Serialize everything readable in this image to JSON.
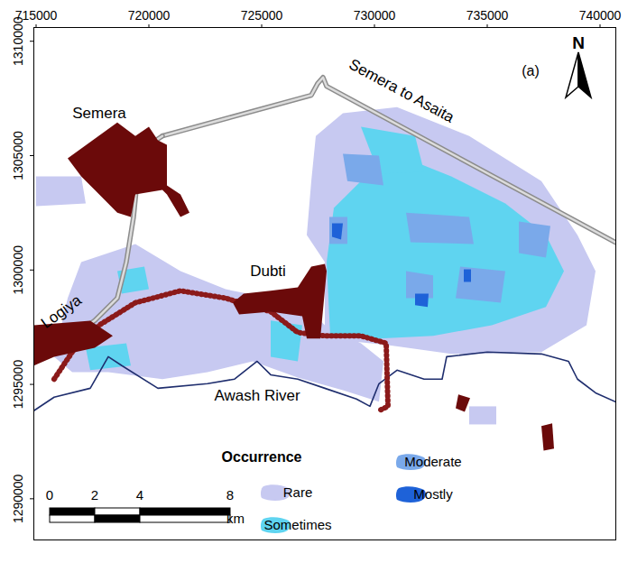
{
  "chart_data": {
    "type": "map",
    "xlim": [
      714900,
      740700
    ],
    "ylim": [
      1288200,
      1310600
    ],
    "xticks": [
      715000,
      720000,
      725000,
      730000,
      735000,
      740000
    ],
    "yticks": [
      1290000,
      1295000,
      1300000,
      1305000,
      1310000
    ],
    "panel_label": "(a)",
    "north_arrow": "N",
    "legend": "bottom",
    "legend_title": "Occurrence",
    "series": [
      {
        "name": "Rare",
        "color": "#c7c9f1",
        "polygons": [
          [
            [
              727400,
              1305860
            ],
            [
              728600,
              1306850
            ],
            [
              731000,
              1307120
            ],
            [
              734200,
              1305860
            ],
            [
              737400,
              1303890
            ],
            [
              739000,
              1301530
            ],
            [
              739800,
              1299950
            ],
            [
              739400,
              1297590
            ],
            [
              737400,
              1296410
            ],
            [
              733400,
              1296330
            ],
            [
              730600,
              1296720
            ],
            [
              727800,
              1297000
            ],
            [
              727800,
              1300350
            ],
            [
              727000,
              1301530
            ],
            [
              727200,
              1303890
            ]
          ],
          [
            [
              717000,
              1300350
            ],
            [
              719400,
              1301140
            ],
            [
              721400,
              1299950
            ],
            [
              723400,
              1299160
            ],
            [
              725400,
              1298770
            ],
            [
              727000,
              1298380
            ],
            [
              727800,
              1297590
            ],
            [
              729400,
              1296800
            ],
            [
              730400,
              1296010
            ],
            [
              730200,
              1294240
            ],
            [
              728600,
              1294750
            ],
            [
              726600,
              1295300
            ],
            [
              724600,
              1296010
            ],
            [
              722600,
              1295540
            ],
            [
              720600,
              1295230
            ],
            [
              718200,
              1295540
            ],
            [
              716600,
              1295540
            ],
            [
              715800,
              1296210
            ],
            [
              716400,
              1298770
            ]
          ],
          [
            [
              715000,
              1304090
            ],
            [
              717000,
              1304090
            ],
            [
              717200,
              1302910
            ],
            [
              715000,
              1302790
            ]
          ],
          [
            [
              734200,
              1294040
            ],
            [
              735400,
              1294040
            ],
            [
              735400,
              1293250
            ],
            [
              734200,
              1293250
            ]
          ]
        ]
      },
      {
        "name": "Sometimes",
        "color": "#5fd4f0",
        "polygons": [
          [
            [
              727880,
              1300350
            ],
            [
              728200,
              1302710
            ],
            [
              729400,
              1303890
            ],
            [
              731400,
              1304880
            ],
            [
              733400,
              1304090
            ],
            [
              735800,
              1302910
            ],
            [
              737600,
              1301530
            ],
            [
              738400,
              1299950
            ],
            [
              737600,
              1298380
            ],
            [
              735200,
              1297590
            ],
            [
              732600,
              1297120
            ],
            [
              730200,
              1297000
            ],
            [
              728040,
              1297120
            ]
          ],
          [
            [
              729400,
              1306260
            ],
            [
              731800,
              1305860
            ],
            [
              732200,
              1304290
            ],
            [
              730200,
              1304210
            ]
          ],
          [
            [
              717200,
              1296600
            ],
            [
              719000,
              1296800
            ],
            [
              719200,
              1295820
            ],
            [
              717400,
              1295620
            ]
          ],
          [
            [
              725400,
              1297790
            ],
            [
              726800,
              1297590
            ],
            [
              726600,
              1296010
            ],
            [
              725400,
              1296210
            ]
          ],
          [
            [
              718600,
              1299950
            ],
            [
              719800,
              1300150
            ],
            [
              720000,
              1299160
            ],
            [
              718800,
              1298970
            ]
          ]
        ]
      },
      {
        "name": "Moderate",
        "color": "#7aa9ea",
        "polygons": [
          [
            [
              728600,
              1305080
            ],
            [
              730200,
              1305000
            ],
            [
              730400,
              1303700
            ],
            [
              728800,
              1303890
            ]
          ],
          [
            [
              731400,
              1302510
            ],
            [
              734200,
              1302320
            ],
            [
              734400,
              1301140
            ],
            [
              731600,
              1301210
            ]
          ],
          [
            [
              733800,
              1300150
            ],
            [
              735800,
              1299950
            ],
            [
              735600,
              1298570
            ],
            [
              733600,
              1298770
            ]
          ],
          [
            [
              736400,
              1302120
            ],
            [
              737800,
              1301920
            ],
            [
              737600,
              1300540
            ],
            [
              736400,
              1300740
            ]
          ],
          [
            [
              728000,
              1302320
            ],
            [
              728800,
              1302320
            ],
            [
              728800,
              1301140
            ],
            [
              728000,
              1301140
            ]
          ],
          [
            [
              731400,
              1299950
            ],
            [
              732600,
              1299760
            ],
            [
              732600,
              1298770
            ],
            [
              731400,
              1298770
            ]
          ]
        ]
      },
      {
        "name": "Mostly",
        "color": "#1e62d8",
        "polygons": [
          [
            [
              728120,
              1302040
            ],
            [
              728600,
              1302040
            ],
            [
              728520,
              1301330
            ],
            [
              728120,
              1301450
            ]
          ],
          [
            [
              731800,
              1298970
            ],
            [
              732400,
              1298970
            ],
            [
              732360,
              1298380
            ],
            [
              731800,
              1298460
            ]
          ],
          [
            [
              733960,
              1300030
            ],
            [
              734280,
              1300030
            ],
            [
              734280,
              1299480
            ],
            [
              733960,
              1299480
            ]
          ]
        ]
      }
    ],
    "towns": {
      "color": "#6b0a0a",
      "items": [
        {
          "name": "Semera",
          "label_at": [
            717800,
            1306850
          ],
          "polygon": [
            [
              716400,
              1304880
            ],
            [
              718600,
              1306450
            ],
            [
              719400,
              1305860
            ],
            [
              720000,
              1306260
            ],
            [
              720400,
              1305670
            ],
            [
              720800,
              1305470
            ],
            [
              720800,
              1303700
            ],
            [
              721400,
              1303300
            ],
            [
              721800,
              1302510
            ],
            [
              721400,
              1302320
            ],
            [
              720800,
              1303300
            ],
            [
              720600,
              1303500
            ],
            [
              719400,
              1303300
            ],
            [
              719200,
              1302320
            ],
            [
              718600,
              1302510
            ],
            [
              717600,
              1303500
            ],
            [
              717000,
              1304090
            ]
          ]
        },
        {
          "name": "Dubti",
          "label_at": [
            725280,
            1299950
          ],
          "polygon": [
            [
              723720,
              1298570
            ],
            [
              724200,
              1298970
            ],
            [
              725400,
              1299090
            ],
            [
              726600,
              1299240
            ],
            [
              727200,
              1300150
            ],
            [
              727800,
              1300270
            ],
            [
              727880,
              1299950
            ],
            [
              727600,
              1297000
            ],
            [
              727000,
              1297000
            ],
            [
              726800,
              1297980
            ],
            [
              725400,
              1298180
            ],
            [
              724000,
              1298060
            ]
          ]
        },
        {
          "polygon": [
            [
              714900,
              1297590
            ],
            [
              717400,
              1297780
            ],
            [
              718400,
              1297120
            ],
            [
              717600,
              1296600
            ],
            [
              715800,
              1296210
            ],
            [
              714900,
              1295820
            ]
          ]
        },
        {
          "polygon": [
            [
              733720,
              1294560
            ],
            [
              734240,
              1294400
            ],
            [
              734000,
              1293800
            ],
            [
              733600,
              1293960
            ]
          ]
        },
        {
          "polygon": [
            [
              737400,
              1293180
            ],
            [
              737880,
              1293300
            ],
            [
              737960,
              1292190
            ],
            [
              737500,
              1292100
            ]
          ]
        }
      ]
    },
    "roads": {
      "color": "#8c8c8c",
      "line_style": "double",
      "items": [
        {
          "name": "Semera to Asaita",
          "label_at": [
            731200,
            1307830
          ],
          "path": [
            [
              720600,
              1305860
            ],
            [
              727200,
              1307640
            ],
            [
              727480,
              1308150
            ],
            [
              727720,
              1308420
            ],
            [
              727880,
              1308030
            ],
            [
              740680,
              1301210
            ]
          ]
        },
        {
          "name": "Logiya",
          "label_at": [
            716120,
            1298180
          ],
          "path": [
            [
              714900,
              1295940
            ],
            [
              716200,
              1296800
            ],
            [
              717600,
              1297790
            ],
            [
              718600,
              1298770
            ],
            [
              719000,
              1300350
            ],
            [
              719320,
              1302320
            ],
            [
              719480,
              1303890
            ],
            [
              720000,
              1305470
            ],
            [
              720600,
              1305860
            ]
          ]
        }
      ]
    },
    "rivers": {
      "color": "#1f2e6e",
      "items": [
        {
          "name": "Awash River",
          "label_at": [
            724800,
            1294520
          ],
          "path": [
            [
              714900,
              1293850
            ],
            [
              715800,
              1294440
            ],
            [
              717400,
              1294830
            ],
            [
              718200,
              1296210
            ],
            [
              718800,
              1295820
            ],
            [
              720400,
              1294830
            ],
            [
              722600,
              1295030
            ],
            [
              723800,
              1295230
            ],
            [
              724800,
              1296010
            ],
            [
              725400,
              1295420
            ],
            [
              726600,
              1295230
            ],
            [
              727800,
              1294830
            ],
            [
              729200,
              1294360
            ],
            [
              729800,
              1294040
            ],
            [
              730200,
              1295030
            ],
            [
              731000,
              1295620
            ],
            [
              732200,
              1295230
            ],
            [
              733000,
              1295230
            ],
            [
              733200,
              1296210
            ],
            [
              735000,
              1296410
            ],
            [
              737400,
              1296330
            ],
            [
              738600,
              1296010
            ],
            [
              739000,
              1295230
            ],
            [
              739800,
              1294630
            ],
            [
              740680,
              1294240
            ]
          ]
        }
      ]
    },
    "canals": {
      "color": "#8b1a1a",
      "line_style": "ticked",
      "items": [
        {
          "path": [
            [
              715800,
              1295230
            ],
            [
              716600,
              1296410
            ],
            [
              717800,
              1297590
            ],
            [
              719400,
              1298570
            ],
            [
              721400,
              1299090
            ],
            [
              723400,
              1298770
            ],
            [
              725400,
              1298180
            ],
            [
              726600,
              1297270
            ],
            [
              727800,
              1297120
            ],
            [
              729400,
              1297120
            ],
            [
              730520,
              1296800
            ],
            [
              730600,
              1294040
            ],
            [
              730200,
              1293850
            ]
          ]
        }
      ]
    },
    "scale_bar": {
      "ticks": [
        0,
        2,
        4,
        8
      ],
      "unit": "km"
    }
  }
}
